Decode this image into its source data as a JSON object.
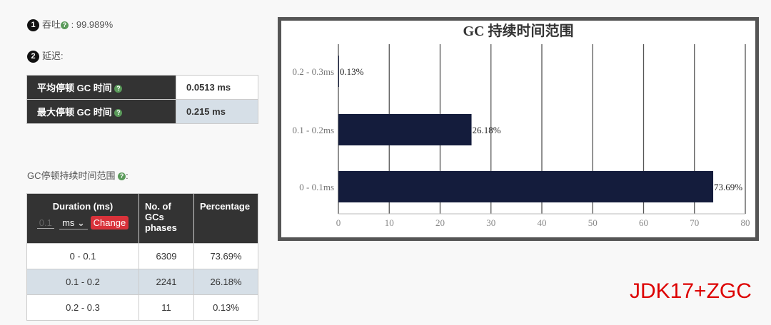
{
  "throughput": {
    "index": "1",
    "label": "吞吐",
    "value": ": 99.989%"
  },
  "latency": {
    "index": "2",
    "label": "延迟:"
  },
  "latency_table": [
    {
      "label": "平均停顿 GC 时间",
      "value": "0.0513 ms"
    },
    {
      "label": "最大停顿 GC 时间",
      "value": "0.215 ms"
    }
  ],
  "range_label": "GC停顿持续时间范围",
  "range_table": {
    "headers": {
      "duration": "Duration (ms)",
      "count": "No. of GCs phases",
      "percentage": "Percentage"
    },
    "input_placeholder": "0.1",
    "unit": "ms",
    "change_label": "Change",
    "rows": [
      {
        "range": "0 - 0.1",
        "count": "6309",
        "pct": "73.69%"
      },
      {
        "range": "0.1 - 0.2",
        "count": "2241",
        "pct": "26.18%"
      },
      {
        "range": "0.2 - 0.3",
        "count": "11",
        "pct": "0.13%"
      }
    ]
  },
  "annotation": "JDK17+ZGC",
  "chart_data": {
    "type": "bar",
    "orientation": "horizontal",
    "title": "GC 持续时间范围",
    "categories": [
      "0 - 0.1ms",
      "0.1 - 0.2ms",
      "0.2 - 0.3ms"
    ],
    "values": [
      73.69,
      26.18,
      0.13
    ],
    "data_labels": [
      "73.69%",
      "26.18%",
      "0.13%"
    ],
    "xlim": [
      0,
      80
    ],
    "xticks": [
      "0",
      "10",
      "20",
      "30",
      "40",
      "50",
      "60",
      "70",
      "80"
    ],
    "grid": true,
    "bar_color": "#141c3c"
  }
}
